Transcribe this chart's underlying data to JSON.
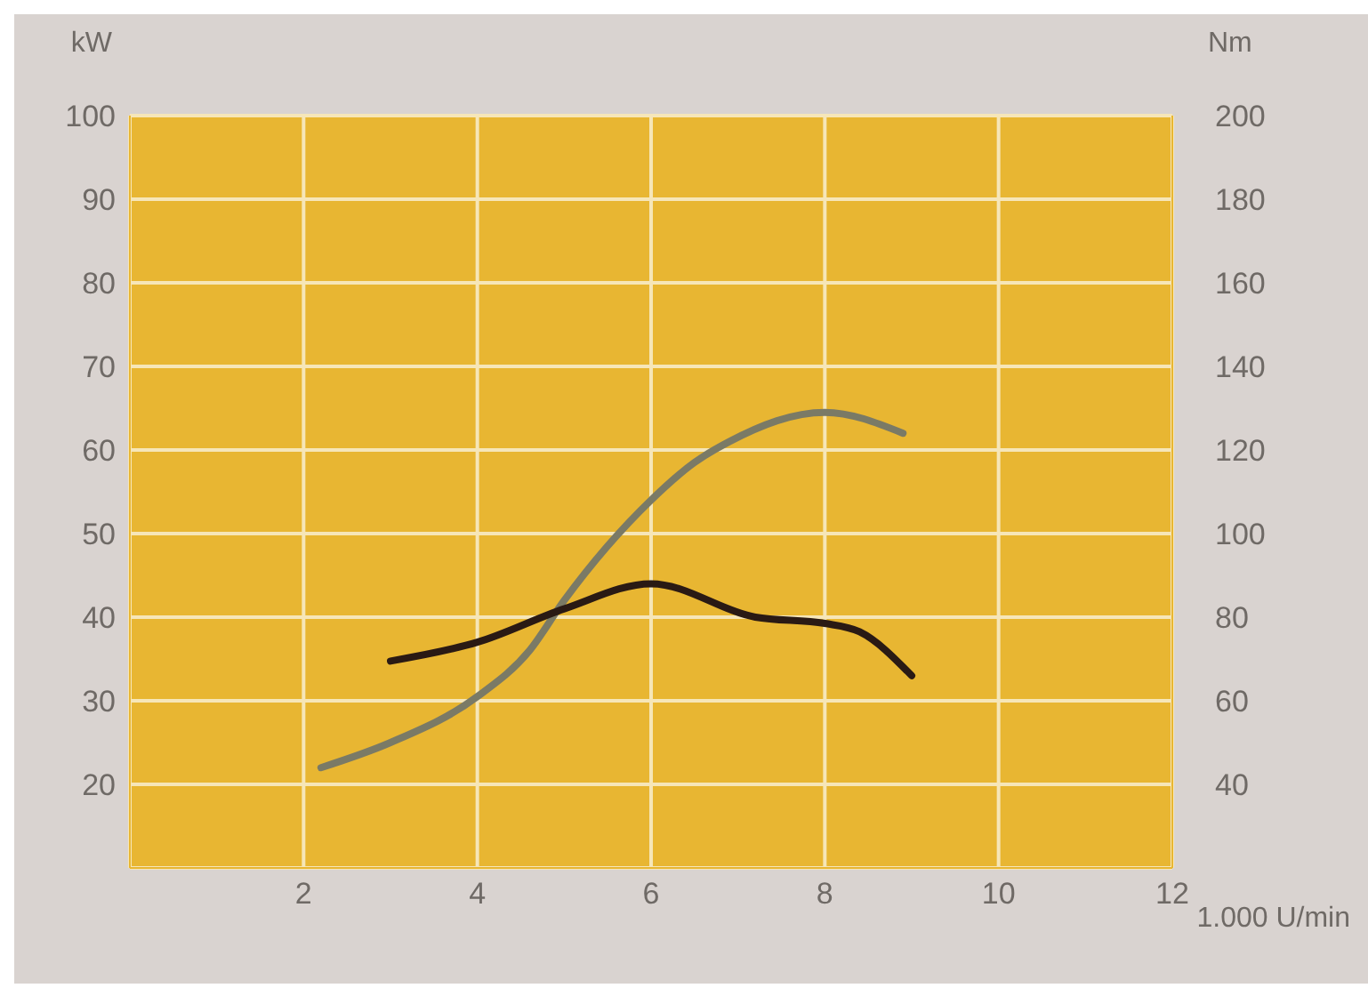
{
  "chart_data": {
    "type": "line",
    "xlabel": "1.000 U/min",
    "ylabel": "kW",
    "y2label": "Nm",
    "xlim": [
      0,
      12
    ],
    "xticks": [
      2,
      4,
      6,
      8,
      10,
      12
    ],
    "ylim": [
      10,
      100
    ],
    "yticks": [
      20,
      30,
      40,
      50,
      60,
      70,
      80,
      90,
      100
    ],
    "y2lim": [
      20,
      200
    ],
    "y2ticks": [
      40,
      60,
      80,
      100,
      120,
      140,
      160,
      180,
      200
    ],
    "grid": true,
    "legend": false,
    "marker": "none",
    "line_style": "solid",
    "series": [
      {
        "color": "#7a7a66",
        "x": [
          2.2,
          3.0,
          4.0,
          4.6,
          5.0,
          6.0,
          6.5,
          6.9,
          8.0,
          8.9
        ],
        "values": [
          22,
          25,
          30.5,
          36,
          42,
          54,
          58.5,
          61,
          64.5,
          62
        ]
      },
      {
        "color": "#2a1a14",
        "axis": "y2",
        "x": [
          3.0,
          4.0,
          5.0,
          6.0,
          7.2,
          8.0,
          8.4,
          9.0
        ],
        "values": [
          69.5,
          74,
          82,
          88,
          80,
          78.5,
          76.5,
          66
        ]
      }
    ]
  }
}
